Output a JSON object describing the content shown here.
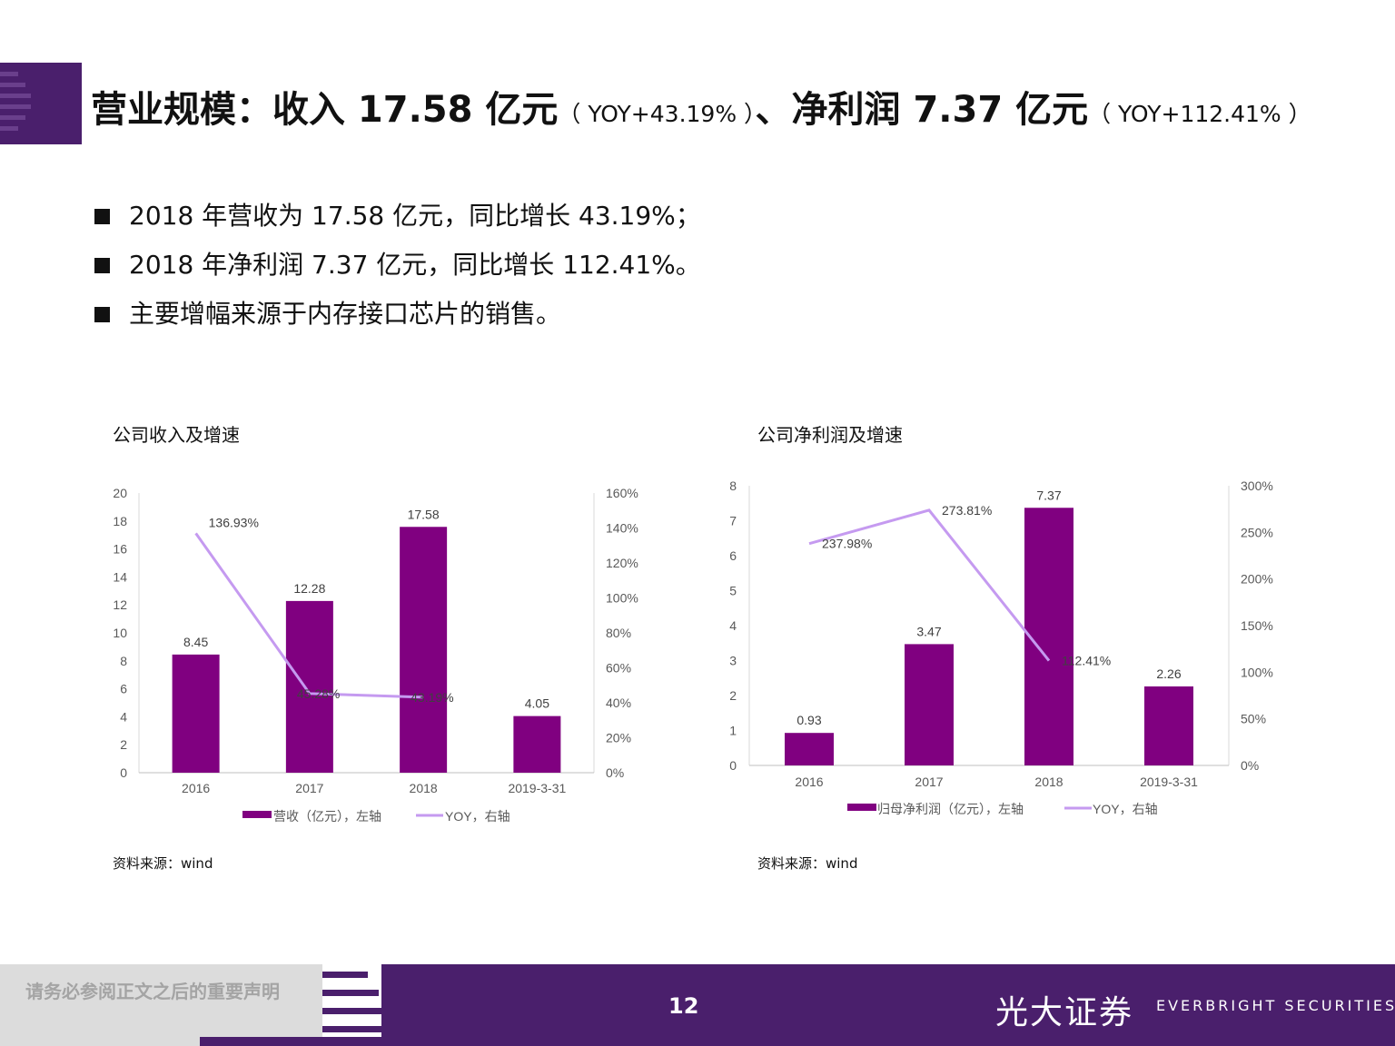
{
  "header": {
    "title_part1": "营业规模：收入 17.58 亿元",
    "title_part2": "（ YOY+43.19% ）",
    "title_part3": "、净利润 7.37 亿元",
    "title_part4": "（ YOY+112.41% ）"
  },
  "bullets": [
    "2018 年营收为 17.58 亿元，同比增长 43.19%；",
    "2018 年净利润 7.37 亿元，同比增长 112.41%。",
    "主要增幅来源于内存接口芯片的销售。"
  ],
  "chart_data": [
    {
      "type": "bar",
      "title": "公司收入及增速",
      "categories": [
        "2016",
        "2017",
        "2018",
        "2019-3-31"
      ],
      "series": [
        {
          "name": "营收（亿元），左轴",
          "type": "bar",
          "axis": "left",
          "values": [
            8.45,
            12.28,
            17.58,
            4.05
          ],
          "labels": [
            "8.45",
            "12.28",
            "17.58",
            "4.05"
          ]
        },
        {
          "name": "YOY，右轴",
          "type": "line",
          "axis": "right",
          "values": [
            136.93,
            45.28,
            43.19,
            null
          ],
          "labels": [
            "136.93%",
            "45.28%",
            "43.19%",
            ""
          ]
        }
      ],
      "left_axis": {
        "min": 0,
        "max": 20,
        "step": 2,
        "ticks": [
          "0",
          "2",
          "4",
          "6",
          "8",
          "10",
          "12",
          "14",
          "16",
          "18",
          "20"
        ]
      },
      "right_axis": {
        "min": 0,
        "max": 160,
        "step": 20,
        "ticks": [
          "0%",
          "20%",
          "40%",
          "60%",
          "80%",
          "100%",
          "120%",
          "140%",
          "160%"
        ]
      },
      "source": "资料来源：wind",
      "legend_position": "bottom"
    },
    {
      "type": "bar",
      "title": "公司净利润及增速",
      "categories": [
        "2016",
        "2017",
        "2018",
        "2019-3-31"
      ],
      "series": [
        {
          "name": "归母净利润（亿元），左轴",
          "type": "bar",
          "axis": "left",
          "values": [
            0.93,
            3.47,
            7.37,
            2.26
          ],
          "labels": [
            "0.93",
            "3.47",
            "7.37",
            "2.26"
          ]
        },
        {
          "name": "YOY，右轴",
          "type": "line",
          "axis": "right",
          "values": [
            237.98,
            273.81,
            112.41,
            null
          ],
          "labels": [
            "237.98%",
            "273.81%",
            "112.41%",
            ""
          ]
        }
      ],
      "left_axis": {
        "min": 0,
        "max": 8,
        "step": 1,
        "ticks": [
          "0",
          "1",
          "2",
          "3",
          "4",
          "5",
          "6",
          "7",
          "8"
        ]
      },
      "right_axis": {
        "min": 0,
        "max": 300,
        "step": 50,
        "ticks": [
          "0%",
          "50%",
          "100%",
          "150%",
          "200%",
          "250%",
          "300%"
        ]
      },
      "source": "资料来源：wind",
      "legend_position": "bottom"
    }
  ],
  "colors": {
    "bar": "#800080",
    "line": "#c59af0",
    "brand_purple": "#4a1f6c",
    "axis_text": "#595959"
  },
  "footer": {
    "disclaimer": "请务必参阅正文之后的重要声明",
    "page_number": "12",
    "brand_cn": "光大证券",
    "brand_en": "EVERBRIGHT SECURITIES"
  }
}
